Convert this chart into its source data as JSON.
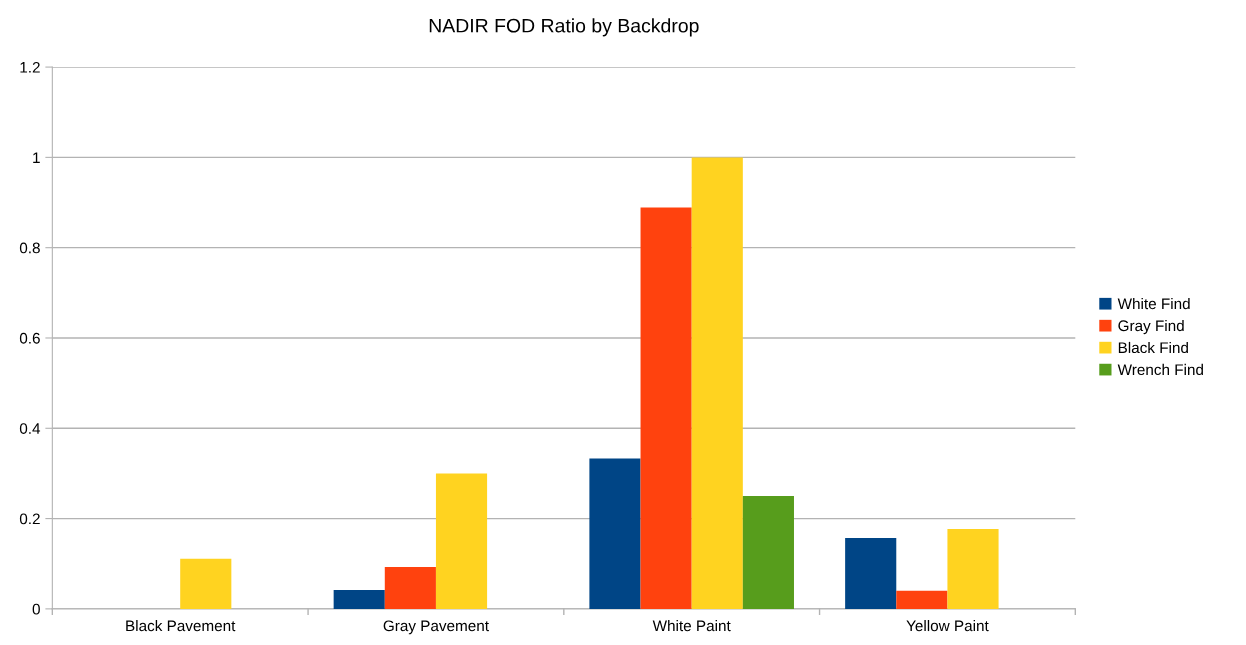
{
  "chart_data": {
    "type": "bar",
    "title": "NADIR FOD Ratio by Backdrop",
    "categories": [
      "Black Pavement",
      "Gray Pavement",
      "White Paint",
      "Yellow Paint"
    ],
    "series": [
      {
        "name": "White Find",
        "color": "#004586",
        "values": [
          0,
          0.042,
          0.333,
          0.157
        ]
      },
      {
        "name": "Gray Find",
        "color": "#ff420e",
        "values": [
          0,
          0.093,
          0.889,
          0.04
        ]
      },
      {
        "name": "Black Find",
        "color": "#ffd320",
        "values": [
          0.111,
          0.3,
          1.0,
          0.177
        ]
      },
      {
        "name": "Wrench Find",
        "color": "#579d1c",
        "values": [
          0,
          0,
          0.25,
          0
        ]
      }
    ],
    "ylim": [
      0,
      1.2
    ],
    "yticks": [
      0,
      0.2,
      0.4,
      0.6,
      0.8,
      1,
      1.2
    ],
    "grid": "y",
    "legend": "right"
  }
}
